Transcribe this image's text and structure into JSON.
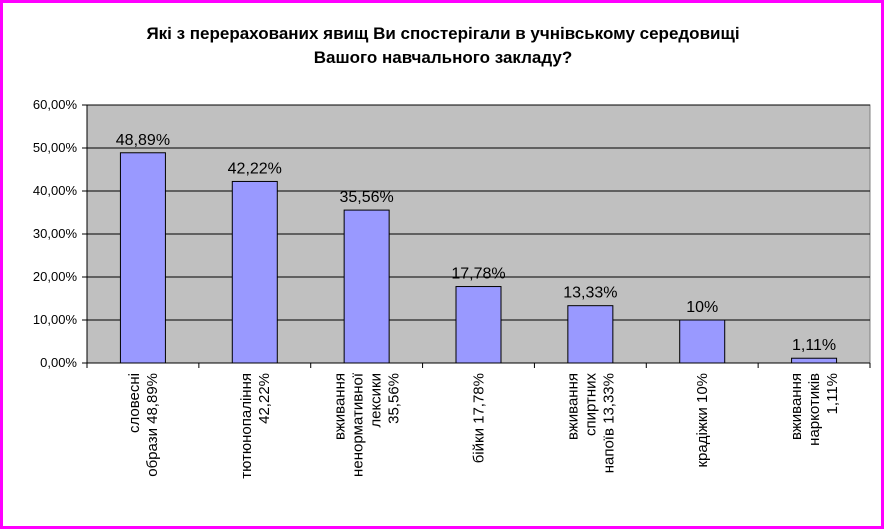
{
  "chart_data": {
    "type": "bar",
    "title_lines": [
      "Які з перерахованих явищ Ви спостерігали в учнівському середовищі",
      "Вашого навчального закладу?"
    ],
    "categories": [
      [
        "словесні",
        "образи 48,89%"
      ],
      [
        "тютюнопаління",
        "42,22%"
      ],
      [
        "вживання",
        "ненормативної",
        "лексики",
        "35,56%"
      ],
      [
        "бійки 17,78%"
      ],
      [
        "вживання",
        "спиртних",
        "напоїв 13,33%"
      ],
      [
        "крадіжки 10%"
      ],
      [
        "вживання",
        "наркотиків",
        "1,11%"
      ]
    ],
    "values": [
      48.89,
      42.22,
      35.56,
      17.78,
      13.33,
      10,
      1.11
    ],
    "data_labels": [
      "48,89%",
      "42,22%",
      "35,56%",
      "17,78%",
      "13,33%",
      "10%",
      "1,11%"
    ],
    "ylim": [
      0,
      60
    ],
    "yticks": [
      {
        "value": 0,
        "label": "0,00%"
      },
      {
        "value": 10,
        "label": "10,00%"
      },
      {
        "value": 20,
        "label": "20,00%"
      },
      {
        "value": 30,
        "label": "30,00%"
      },
      {
        "value": 40,
        "label": "40,00%"
      },
      {
        "value": 50,
        "label": "50,00%"
      },
      {
        "value": 60,
        "label": "60,00%"
      }
    ],
    "grid": true,
    "legend": "none",
    "colors": {
      "bar": "#9999ff",
      "plot_background": "#c0c0c0",
      "frame_border": "#ff00ff"
    }
  }
}
